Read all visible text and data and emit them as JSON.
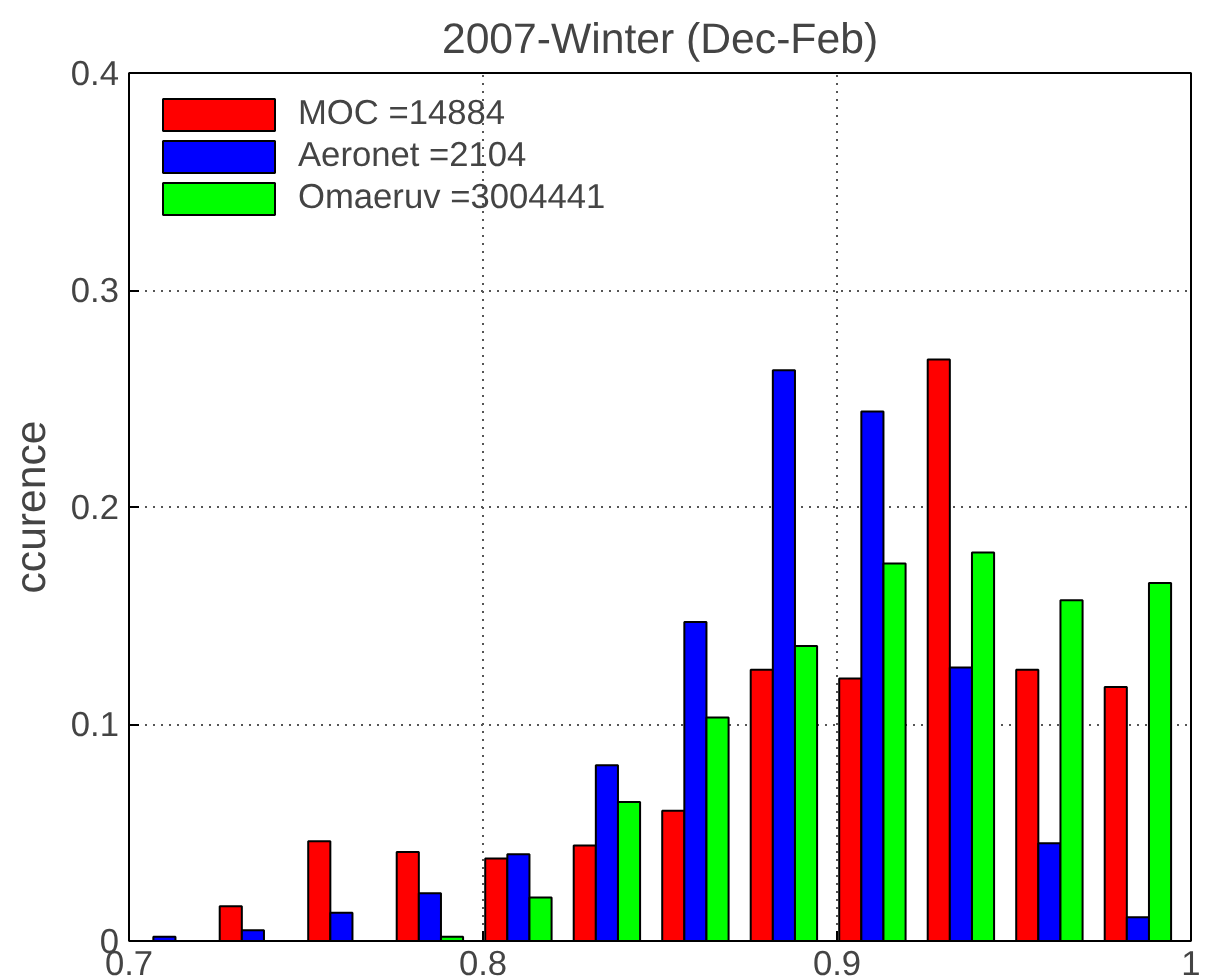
{
  "chart_data": {
    "type": "bar",
    "title": "2007-Winter (Dec-Feb)",
    "ylabel": "ccurence",
    "x": [
      0.71,
      0.735,
      0.76,
      0.785,
      0.81,
      0.835,
      0.86,
      0.885,
      0.91,
      0.935,
      0.96,
      0.985
    ],
    "series": [
      {
        "name": "MOC =14884",
        "color": "#ff0000",
        "values": [
          null,
          0.016,
          0.046,
          0.041,
          0.038,
          0.044,
          0.06,
          0.125,
          0.121,
          0.268,
          0.125,
          0.117
        ]
      },
      {
        "name": "Aeronet =2104",
        "color": "#0000ff",
        "values": [
          0.002,
          0.005,
          0.013,
          0.022,
          0.04,
          0.081,
          0.147,
          0.263,
          0.244,
          0.126,
          0.045,
          0.011
        ]
      },
      {
        "name": "Omaeruv =3004441",
        "color": "#00ff00",
        "values": [
          null,
          null,
          null,
          0.002,
          0.02,
          0.064,
          0.103,
          0.136,
          0.174,
          0.179,
          0.157,
          0.165
        ]
      }
    ],
    "xlim": [
      0.7,
      1
    ],
    "ylim": [
      0,
      0.4
    ],
    "xticks": [
      0.7,
      0.8,
      0.9,
      1
    ],
    "yticks": [
      0,
      0.1,
      0.2,
      0.3,
      0.4
    ],
    "grid": true,
    "legend": "top left"
  }
}
